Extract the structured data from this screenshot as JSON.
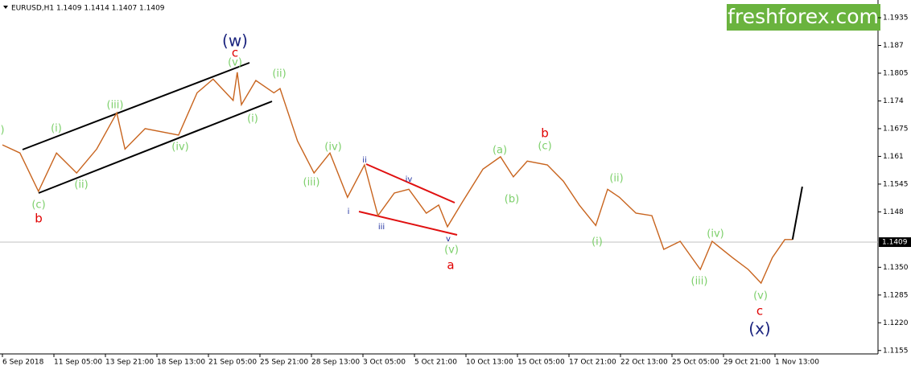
{
  "header": "EURUSD,H1  1.1409 1.1414 1.1407 1.1409",
  "logo": "freshforex.com",
  "chart_data": {
    "type": "line",
    "x": [
      0,
      3.4,
      7.0,
      10.5,
      14.4,
      18.3,
      22.2,
      23.8,
      27.7,
      34.2,
      37.8,
      40.9,
      44.8,
      45.6,
      46.4,
      49.2,
      52.7,
      53.9,
      57.3,
      60.5,
      63.6,
      67.0,
      70.3,
      72.9,
      76.1,
      78.9,
      82.3,
      84.7,
      86.4,
      89.4,
      93.3,
      96.7,
      99.2,
      101.9,
      105.8,
      108.9,
      112.0,
      115.2,
      117.5,
      119.8,
      123.0,
      126.1,
      128.4,
      131.6,
      135.5,
      137.8,
      141.7,
      144.8,
      147.3,
      149.5,
      151.9,
      153.4,
      155.3
    ],
    "series": [
      {
        "color": "#c8641e",
        "values": [
          1.1637,
          1.1618,
          1.1528,
          1.1618,
          1.1571,
          1.1627,
          1.1712,
          1.1627,
          1.1675,
          1.166,
          1.1759,
          1.1791,
          1.1741,
          1.1807,
          1.1731,
          1.1788,
          1.1759,
          1.1769,
          1.1646,
          1.1571,
          1.1618,
          1.1514,
          1.159,
          1.1471,
          1.1524,
          1.1533,
          1.1477,
          1.1496,
          1.1445,
          1.1505,
          1.158,
          1.1609,
          1.1562,
          1.1599,
          1.159,
          1.1552,
          1.1496,
          1.1448,
          1.1533,
          1.1514,
          1.1477,
          1.1471,
          1.1392,
          1.1411,
          1.1345,
          1.1411,
          1.1373,
          1.1345,
          1.1313,
          1.1373,
          1.1415,
          1.1415,
          null
        ]
      },
      {
        "color": "#000000",
        "values": [
          null,
          null,
          null,
          null,
          null,
          null,
          null,
          null,
          null,
          null,
          null,
          null,
          null,
          null,
          null,
          null,
          null,
          null,
          null,
          null,
          null,
          null,
          null,
          null,
          null,
          null,
          null,
          null,
          null,
          null,
          null,
          null,
          null,
          null,
          null,
          null,
          null,
          null,
          null,
          null,
          null,
          null,
          null,
          null,
          null,
          null,
          null,
          null,
          null,
          null,
          null,
          1.1415,
          1.1539
        ]
      }
    ],
    "last_price": 1.1409,
    "xlim": [
      0,
      170
    ],
    "ylim": [
      1.1147,
      1.1969
    ],
    "xticks": [
      {
        "value": 0,
        "label": "6 Sep 2018"
      },
      {
        "value": 10,
        "label": "11 Sep 05:00"
      },
      {
        "value": 20,
        "label": "13 Sep 21:00"
      },
      {
        "value": 30,
        "label": "18 Sep 13:00"
      },
      {
        "value": 40,
        "label": "21 Sep 05:00"
      },
      {
        "value": 50,
        "label": "25 Sep 21:00"
      },
      {
        "value": 60,
        "label": "28 Sep 13:00"
      },
      {
        "value": 70,
        "label": "3 Oct 05:00"
      },
      {
        "value": 80,
        "label": "5 Oct 21:00"
      },
      {
        "value": 90,
        "label": "10 Oct 13:00"
      },
      {
        "value": 100,
        "label": "15 Oct 05:00"
      },
      {
        "value": 110,
        "label": "17 Oct 21:00"
      },
      {
        "value": 120,
        "label": "22 Oct 13:00"
      },
      {
        "value": 130,
        "label": "25 Oct 05:00"
      },
      {
        "value": 140,
        "label": "29 Oct 21:00"
      },
      {
        "value": 150,
        "label": "1 Nov 13:00"
      }
    ],
    "yticks": [
      1.1155,
      {
        "value": 1.122,
        "label": "1.1220"
      },
      1.1285,
      {
        "value": 1.135,
        "label": "1.1350"
      },
      1.148,
      1.1545,
      1.161,
      1.1675,
      1.174,
      1.1805,
      1.187,
      1.1935
    ],
    "annotations": [
      {
        "color": "#7ccf6a",
        "labels": [
          ")",
          "(i)",
          "(ii)",
          "(iii)",
          "(iv)",
          "(v)",
          "(c)",
          "(i)",
          "(ii)",
          "(iii)",
          "(iv)",
          "(v)",
          "(a)",
          "(b)",
          "(c)",
          "(i)",
          "(ii)",
          "(iii)",
          "(iv)",
          "(v)"
        ]
      },
      {
        "color": "#e00000",
        "labels": [
          "b",
          "c",
          "a",
          "b",
          "c"
        ]
      },
      {
        "color": "#1a237e",
        "labels": [
          "(w)",
          "(x)"
        ]
      },
      {
        "color": "#2030a0",
        "labels": [
          "i",
          "ii",
          "iii",
          "iv",
          "v"
        ]
      }
    ]
  }
}
